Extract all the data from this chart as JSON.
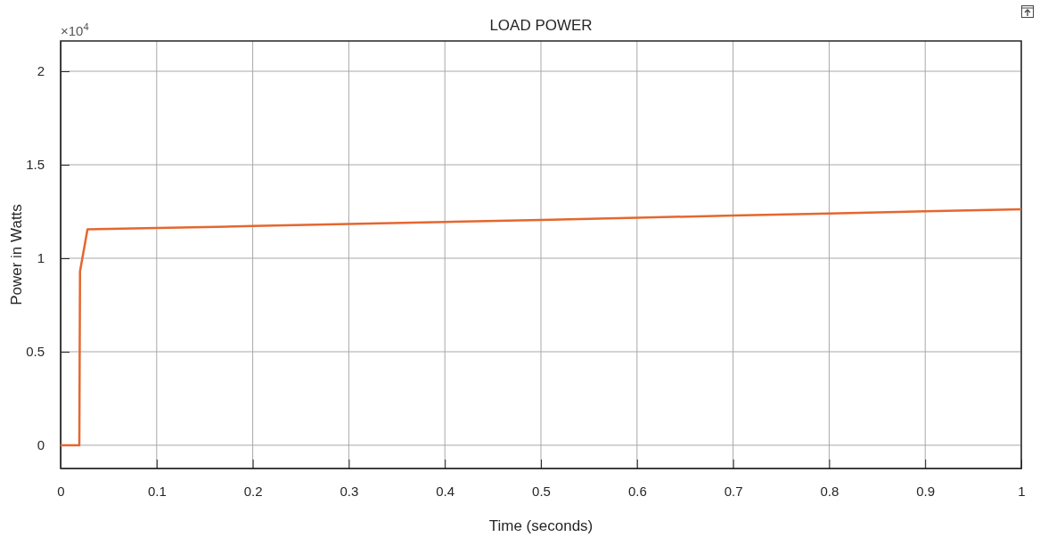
{
  "chart_data": {
    "type": "line",
    "title": "LOAD POWER",
    "xlabel": "Time (seconds)",
    "ylabel": "Power in Watts",
    "annotations": [
      "×10$^{4}$"
    ],
    "series": [
      {
        "color": "#e4672f",
        "x": [
          0,
          0.0195,
          0.0202,
          0.028,
          0.1,
          0.2,
          0.3,
          0.4,
          0.5,
          0.6,
          0.7,
          0.8,
          0.9,
          1
        ],
        "values": [
          0,
          0,
          0.93,
          1.155,
          1.162,
          1.172,
          1.183,
          1.194,
          1.205,
          1.217,
          1.228,
          1.239,
          1.251,
          1.262
        ]
      }
    ],
    "xlim": [
      0,
      1
    ],
    "xticks": [
      0,
      0.1,
      0.2,
      0.3,
      0.4,
      0.5,
      0.6,
      0.7,
      0.8,
      0.9,
      1
    ],
    "ylim": [
      -0.124,
      2.162
    ],
    "yticks": [
      0,
      0.5,
      1,
      1.5,
      2
    ],
    "grid": true,
    "marker": "none",
    "line_style": "solid"
  }
}
